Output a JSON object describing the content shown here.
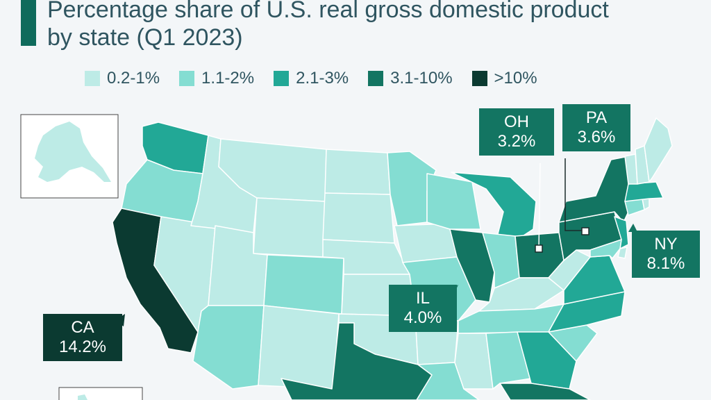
{
  "title": {
    "line1": "Percentage share of U.S. real gross domestic product",
    "line2": "by state (Q1 2023)"
  },
  "legend": [
    {
      "label": "0.2-1%",
      "color": "#bdebe6"
    },
    {
      "label": "1.1-2%",
      "color": "#84ddd2"
    },
    {
      "label": "2.1-3%",
      "color": "#22a896"
    },
    {
      "label": "3.1-10%",
      "color": "#137562"
    },
    {
      "label": ">10%",
      "color": "#0b3a31"
    }
  ],
  "callouts": {
    "ca": {
      "state": "CA",
      "value": "14.2%"
    },
    "il": {
      "state": "IL",
      "value": "4.0%"
    },
    "oh": {
      "state": "OH",
      "value": "3.2%"
    },
    "pa": {
      "state": "PA",
      "value": "3.6%"
    },
    "ny": {
      "state": "NY",
      "value": "8.1%"
    }
  },
  "states": [
    {
      "id": "WA",
      "tier": 2
    },
    {
      "id": "OR",
      "tier": 1
    },
    {
      "id": "CA",
      "tier": 4
    },
    {
      "id": "NV",
      "tier": 0
    },
    {
      "id": "ID",
      "tier": 0
    },
    {
      "id": "MT",
      "tier": 0
    },
    {
      "id": "WY",
      "tier": 0
    },
    {
      "id": "UT",
      "tier": 0
    },
    {
      "id": "AZ",
      "tier": 1
    },
    {
      "id": "CO",
      "tier": 1
    },
    {
      "id": "NM",
      "tier": 0
    },
    {
      "id": "ND",
      "tier": 0
    },
    {
      "id": "SD",
      "tier": 0
    },
    {
      "id": "NE",
      "tier": 0
    },
    {
      "id": "KS",
      "tier": 0
    },
    {
      "id": "OK",
      "tier": 0
    },
    {
      "id": "TX",
      "tier": 3
    },
    {
      "id": "MN",
      "tier": 1
    },
    {
      "id": "IA",
      "tier": 0
    },
    {
      "id": "MO",
      "tier": 1
    },
    {
      "id": "AR",
      "tier": 0
    },
    {
      "id": "LA",
      "tier": 1
    },
    {
      "id": "WI",
      "tier": 1
    },
    {
      "id": "IL",
      "tier": 3
    },
    {
      "id": "MI",
      "tier": 2
    },
    {
      "id": "IN",
      "tier": 1
    },
    {
      "id": "OH",
      "tier": 3
    },
    {
      "id": "KY",
      "tier": 0
    },
    {
      "id": "TN",
      "tier": 1
    },
    {
      "id": "MS",
      "tier": 0
    },
    {
      "id": "AL",
      "tier": 1
    },
    {
      "id": "GA",
      "tier": 2
    },
    {
      "id": "FL",
      "tier": 3
    },
    {
      "id": "SC",
      "tier": 1
    },
    {
      "id": "NC",
      "tier": 2
    },
    {
      "id": "VA",
      "tier": 2
    },
    {
      "id": "WV",
      "tier": 0
    },
    {
      "id": "PA",
      "tier": 3
    },
    {
      "id": "NY",
      "tier": 3
    },
    {
      "id": "NJ",
      "tier": 2
    },
    {
      "id": "MD",
      "tier": 1
    },
    {
      "id": "DE",
      "tier": 0
    },
    {
      "id": "CT",
      "tier": 1
    },
    {
      "id": "RI",
      "tier": 0
    },
    {
      "id": "MA",
      "tier": 2
    },
    {
      "id": "VT",
      "tier": 0
    },
    {
      "id": "NH",
      "tier": 0
    },
    {
      "id": "ME",
      "tier": 0
    },
    {
      "id": "AK",
      "tier": 0
    },
    {
      "id": "HI",
      "tier": 0
    }
  ]
}
